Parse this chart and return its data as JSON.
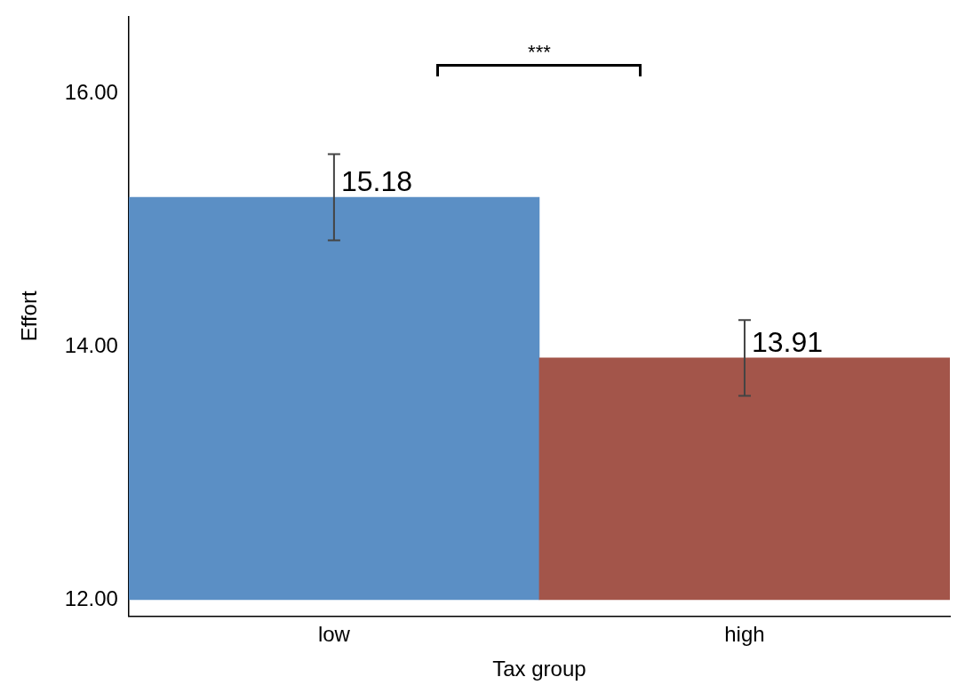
{
  "chart_data": {
    "type": "bar",
    "xlabel": "Tax group",
    "ylabel": "Effort",
    "categories": [
      "low",
      "high"
    ],
    "values": [
      3.18,
      1.91
    ],
    "base": [
      12,
      12
    ],
    "value_labels": [
      "15.18",
      "13.91"
    ],
    "colors": [
      "#5b8fc5",
      "#a3554a"
    ],
    "errors": [
      0.34,
      0.3
    ],
    "ylim": [
      11.87,
      16.61
    ],
    "yticks": [
      {
        "value": 12,
        "label": "12.00"
      },
      {
        "value": 14,
        "label": "14.00"
      },
      {
        "value": 16,
        "label": "16.00"
      }
    ],
    "grid": false,
    "legend": false,
    "annotations": [
      "***"
    ]
  }
}
